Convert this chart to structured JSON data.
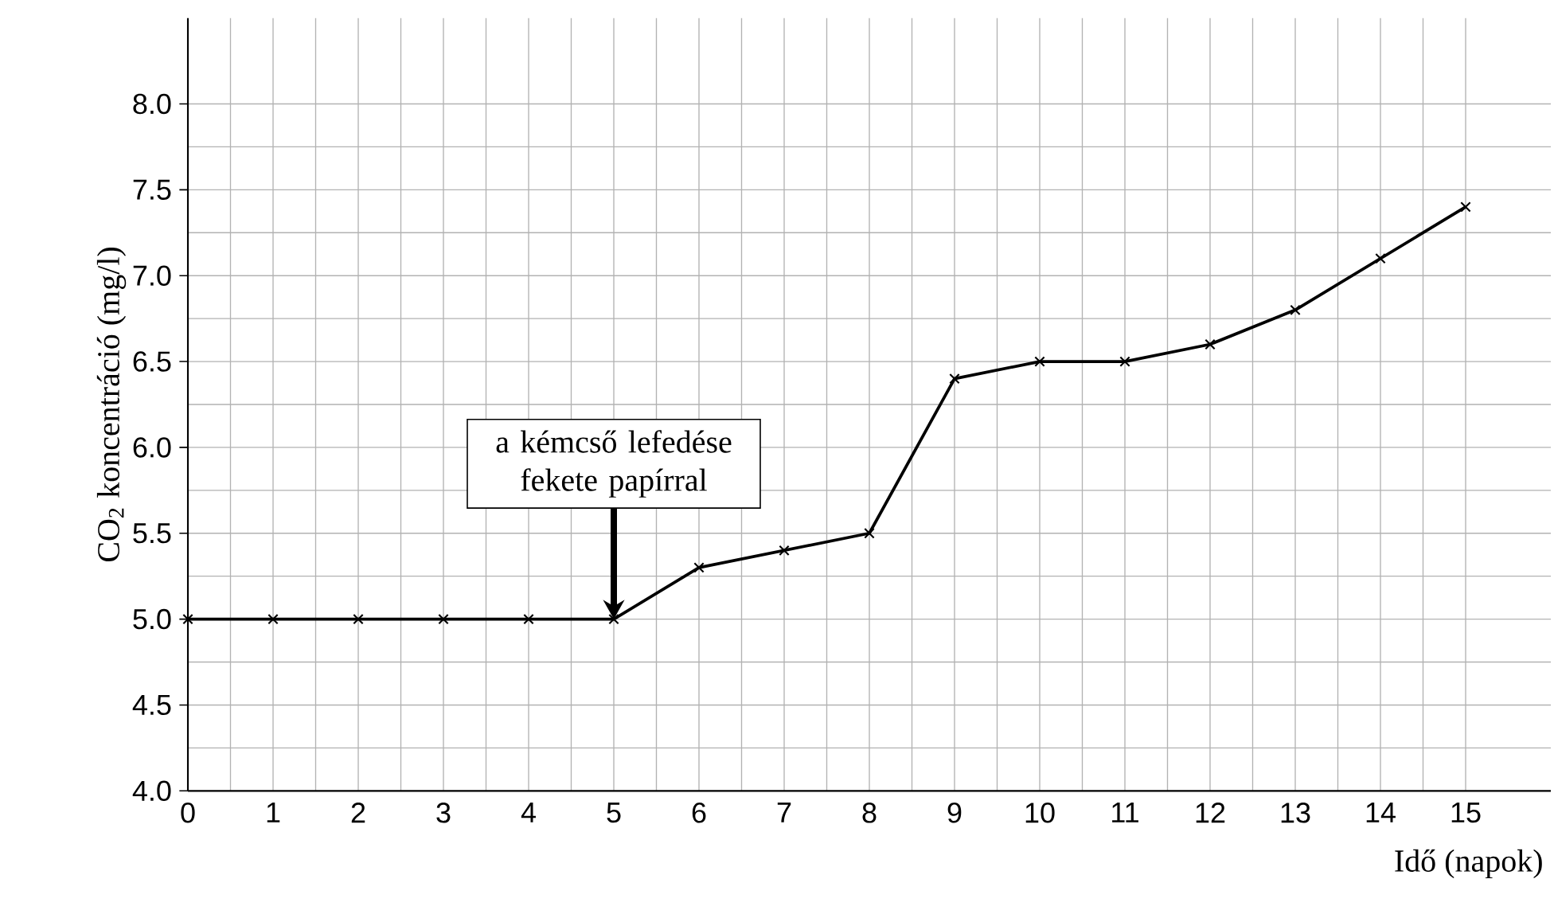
{
  "chart_data": {
    "type": "line",
    "xlabel": "Idő (napok)",
    "ylabel": "CO$_{2}$ koncentráció (mg/l)",
    "x": [
      0,
      1,
      2,
      3,
      4,
      5,
      6,
      7,
      8,
      9,
      10,
      11,
      12,
      13,
      14,
      15
    ],
    "series": [
      {
        "color": "#000000",
        "values": [
          5.0,
          5.0,
          5.0,
          5.0,
          5.0,
          5.0,
          5.3,
          5.4,
          5.5,
          6.4,
          6.5,
          6.5,
          6.6,
          6.8,
          7.1,
          7.4
        ]
      }
    ],
    "xlim": [
      0,
      16
    ],
    "ylim": [
      4,
      8.5
    ],
    "xticks": [
      0,
      1,
      2,
      3,
      4,
      5,
      6,
      7,
      8,
      9,
      10,
      11,
      12,
      13,
      14,
      15
    ],
    "yticks": [
      {
        "value": 4,
        "label": "4.0"
      },
      {
        "value": 4.5,
        "label": "4.5"
      },
      {
        "value": 5,
        "label": "5.0"
      },
      {
        "value": 5.5,
        "label": "5.5"
      },
      {
        "value": 6,
        "label": "6.0"
      },
      {
        "value": 6.5,
        "label": "6.5"
      },
      {
        "value": 7,
        "label": "7.0"
      },
      {
        "value": 7.5,
        "label": "7.5"
      },
      {
        "value": 8,
        "label": "8.0"
      }
    ],
    "annotations": [
      {
        "text": "a kémcső lefedése fekete papírral",
        "x": 5,
        "y": 5.0
      }
    ],
    "grid": true,
    "marker": "cross",
    "line_style": "solid"
  }
}
